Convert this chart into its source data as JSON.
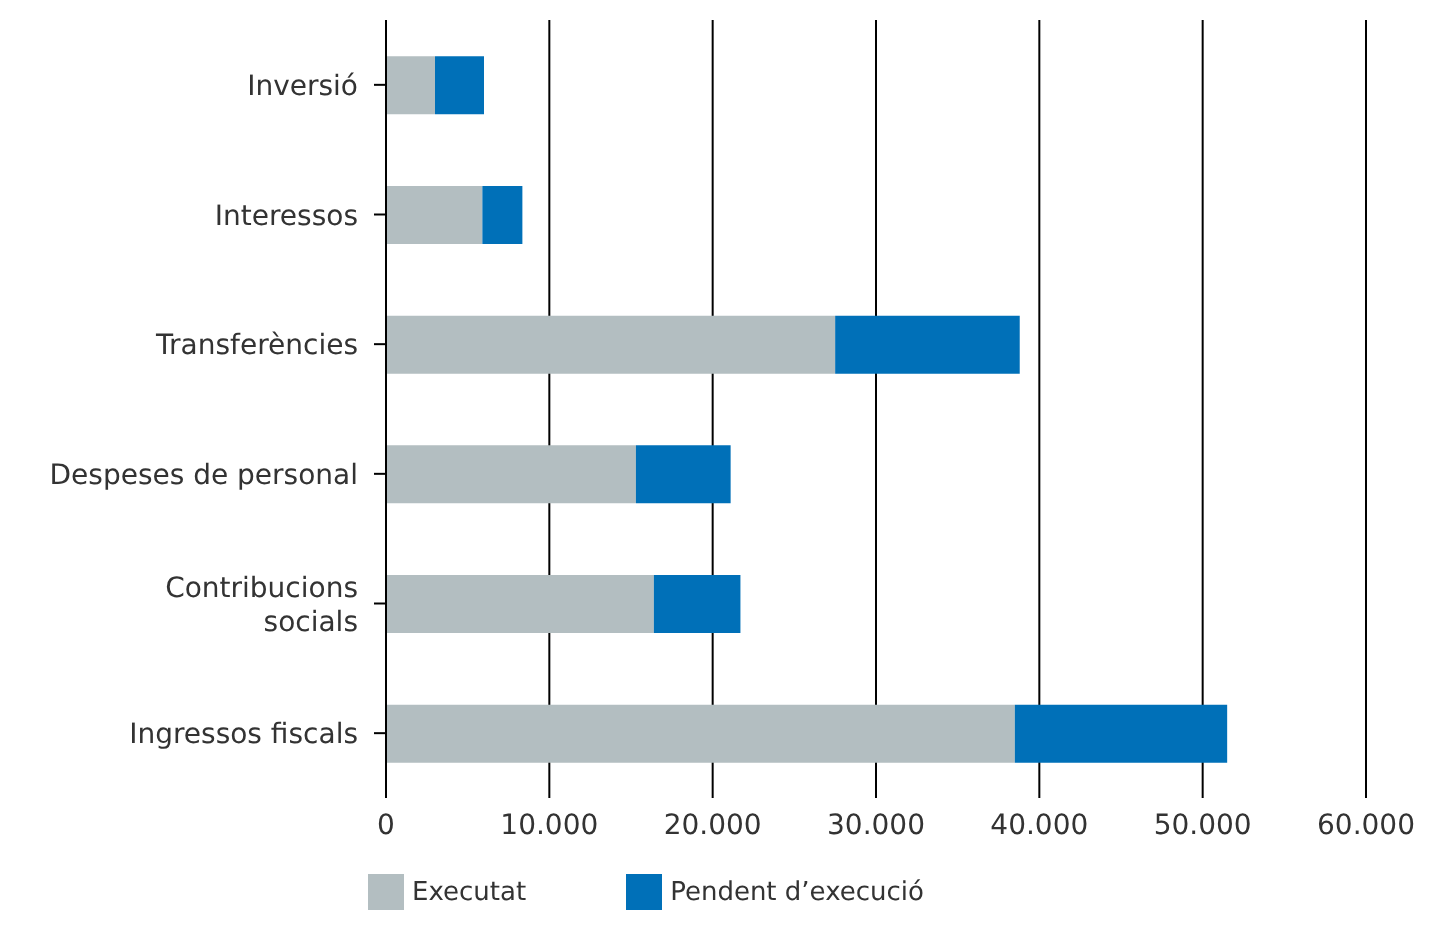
{
  "chart_data": {
    "type": "bar",
    "orientation": "horizontal",
    "stacked": true,
    "categories": [
      "Inversió",
      "Interessos",
      "Transferències",
      "Despeses de personal",
      "Contribucions socials",
      "Ingressos fiscals"
    ],
    "series": [
      {
        "name": "Executat",
        "color": "#b3bec1",
        "values": [
          3000,
          5900,
          27500,
          15300,
          16400,
          38500
        ]
      },
      {
        "name": "Pendent d’execució",
        "color": "#0070b8",
        "values": [
          3000,
          2450,
          11300,
          5800,
          5300,
          13000
        ]
      }
    ],
    "xlim": [
      0,
      60000
    ],
    "xticks": [
      {
        "value": 0,
        "label": "0"
      },
      {
        "value": 10000,
        "label": "10.000"
      },
      {
        "value": 20000,
        "label": "20.000"
      },
      {
        "value": 30000,
        "label": "30.000"
      },
      {
        "value": 40000,
        "label": "40.000"
      },
      {
        "value": 50000,
        "label": "50.000"
      },
      {
        "value": 60000,
        "label": "60.000"
      }
    ],
    "grid": "x",
    "legend": "bottom"
  }
}
